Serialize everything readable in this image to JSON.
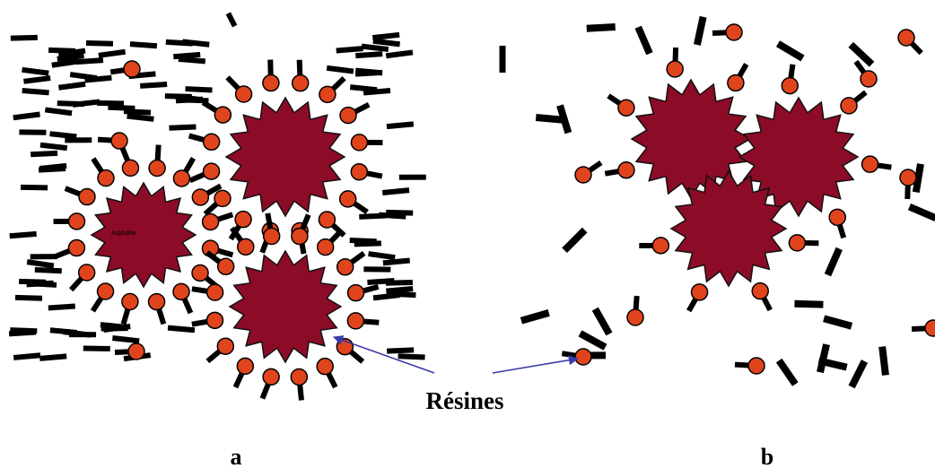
{
  "labels": {
    "asphaltene": "Asphalte",
    "resins": "Résines",
    "panel_a": "a",
    "panel_b": "b"
  }
}
